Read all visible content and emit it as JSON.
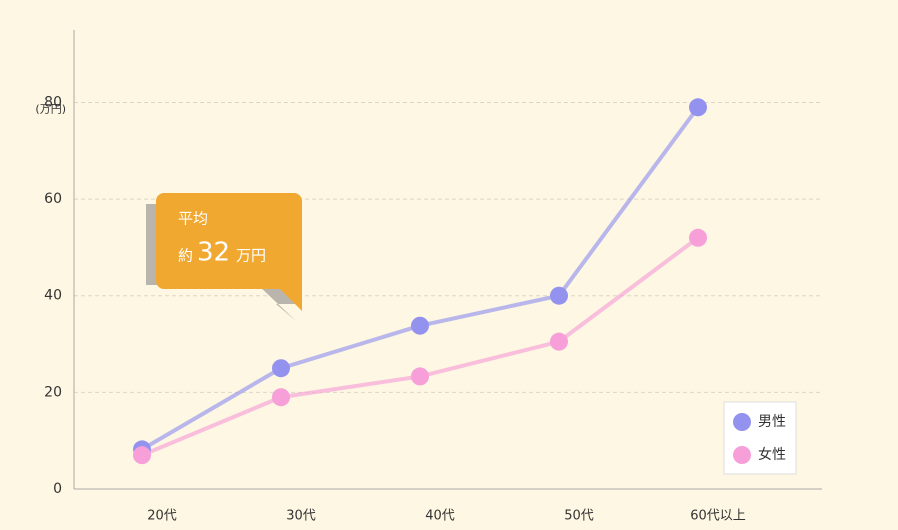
{
  "chart_data": {
    "type": "line",
    "categories": [
      "20代",
      "30代",
      "40代",
      "50代",
      "60代以上"
    ],
    "series": [
      {
        "name": "男性",
        "color": "#9393ef",
        "values": [
          8.2,
          25,
          33.8,
          40,
          79
        ]
      },
      {
        "name": "女性",
        "color": "#f79fd8",
        "values": [
          7,
          19,
          23.3,
          30.5,
          52
        ]
      }
    ],
    "ylim": [
      0,
      95
    ],
    "yticks": [
      0,
      20,
      40,
      60,
      80
    ],
    "y_unit": "(万円)",
    "grid": true,
    "legend": "bottom-right",
    "callout": {
      "title": "平均",
      "prefix": "約",
      "value": 32,
      "unit": "万円"
    }
  }
}
